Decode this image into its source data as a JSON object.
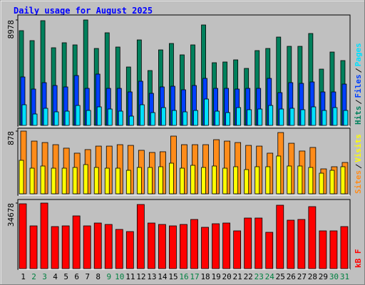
{
  "chart_data": [
    {
      "type": "bar",
      "title": "Daily usage for August 2025",
      "ylim": [
        0,
        8978
      ],
      "yticks": [
        8978
      ],
      "series": [
        {
          "name": "Hits",
          "color": "#00805c",
          "values": [
            8068,
            7219,
            8917,
            6612,
            7037,
            6855,
            8978,
            6551,
            7886,
            6673,
            4974,
            7279,
            4671,
            6430,
            6976,
            6006,
            6855,
            8553,
            5338,
            5399,
            5581,
            4853,
            6370,
            6551,
            7522,
            6733,
            6733,
            7825,
            4792,
            6248,
            5520
          ]
        },
        {
          "name": "Files",
          "color": "#0040ff",
          "values": [
            4125,
            3094,
            3640,
            3397,
            3276,
            4246,
            3154,
            4368,
            3154,
            3154,
            2851,
            3761,
            2730,
            3276,
            3336,
            3033,
            3397,
            4004,
            3154,
            3154,
            3094,
            3154,
            3154,
            4004,
            2790,
            3640,
            3579,
            3700,
            2851,
            2851,
            3518
          ]
        },
        {
          "name": "Pages",
          "color": "#00e0ff",
          "values": [
            1759,
            971,
            1456,
            1153,
            1213,
            1698,
            1274,
            1577,
            1395,
            1213,
            789,
            1759,
            1092,
            1517,
            1274,
            1153,
            1274,
            2244,
            1213,
            1092,
            1517,
            1335,
            1395,
            1698,
            1395,
            1456,
            1335,
            1577,
            1274,
            1517,
            1274
          ]
        }
      ]
    },
    {
      "type": "bar",
      "ylim": [
        0,
        878
      ],
      "yticks": [
        878
      ],
      "series": [
        {
          "name": "Sites",
          "color": "#ff8c1a",
          "values": [
            878,
            738,
            718,
            688,
            639,
            569,
            619,
            668,
            668,
            688,
            678,
            609,
            579,
            589,
            808,
            688,
            688,
            688,
            758,
            738,
            718,
            678,
            668,
            569,
            858,
            708,
            599,
            649,
            349,
            379,
            439
          ]
        },
        {
          "name": "Visits",
          "color": "#ffff00",
          "values": [
            469,
            359,
            389,
            359,
            359,
            369,
            409,
            369,
            359,
            359,
            329,
            369,
            369,
            379,
            429,
            359,
            399,
            369,
            389,
            359,
            379,
            339,
            379,
            379,
            529,
            389,
            389,
            369,
            289,
            329,
            379
          ]
        }
      ]
    },
    {
      "type": "bar",
      "ylim": [
        0,
        34678
      ],
      "yticks": [
        34678
      ],
      "categories": [
        "1",
        "2",
        "3",
        "4",
        "5",
        "6",
        "7",
        "8",
        "9",
        "10",
        "11",
        "12",
        "13",
        "14",
        "15",
        "16",
        "17",
        "18",
        "19",
        "20",
        "21",
        "22",
        "23",
        "24",
        "25",
        "26",
        "27",
        "28",
        "29",
        "30",
        "31"
      ],
      "label_colors": [
        "#000000",
        "#008040",
        "#008040",
        "#000000",
        "#000000",
        "#000000",
        "#000000",
        "#000000",
        "#008040",
        "#008040",
        "#000000",
        "#000000",
        "#000000",
        "#000000",
        "#000000",
        "#008040",
        "#008040",
        "#000000",
        "#000000",
        "#000000",
        "#000000",
        "#000000",
        "#008040",
        "#008040",
        "#000000",
        "#000000",
        "#000000",
        "#000000",
        "#000000",
        "#008040",
        "#008040"
      ],
      "series": [
        {
          "name": "kB F",
          "color": "#ff0000",
          "values": [
            34300,
            22615,
            34678,
            22238,
            22615,
            27893,
            22615,
            24123,
            23369,
            20731,
            19600,
            33922,
            24123,
            23369,
            22615,
            23369,
            26007,
            21861,
            23746,
            24123,
            19977,
            26761,
            26761,
            19223,
            33546,
            25630,
            26007,
            32792,
            19977,
            19977,
            22238
          ]
        }
      ]
    }
  ]
}
